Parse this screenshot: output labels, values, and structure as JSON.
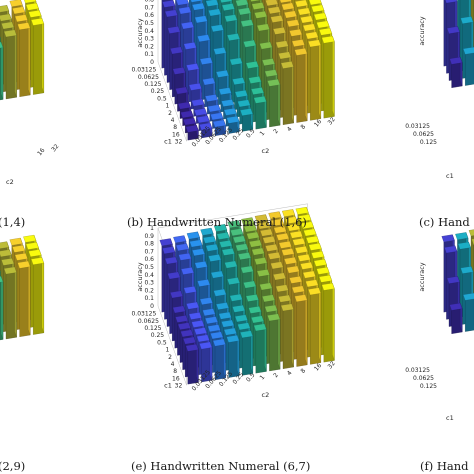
{
  "captions": {
    "a": "(1,4)",
    "b": "(b) Handwritten Numeral (1,6)",
    "c": "(c) Hand",
    "d": "(2,9)",
    "e": "(e) Handwritten Numeral (6,7)",
    "f": "(f) Hand"
  },
  "axis_labels": {
    "accuracy": "accuracy",
    "c1": "c1",
    "c2": "c2"
  },
  "param_ticks": [
    "0.03125",
    "0.0625",
    "0.125",
    "0.25",
    "0.5",
    "1",
    "2",
    "4",
    "8",
    "16",
    "32"
  ],
  "z_ticks": [
    "0",
    "0.1",
    "0.2",
    "0.3",
    "0.4",
    "0.5",
    "0.6",
    "0.7",
    "0.8",
    "0.9",
    "1"
  ],
  "colormap": [
    "#3e26a8",
    "#4a56f4",
    "#2991ee",
    "#1baec6",
    "#2fc194",
    "#8dbf42",
    "#eaba30",
    "#fbd72b",
    "#f9fb0e"
  ],
  "chart_data": [
    {
      "type": "bar3d",
      "title": "(b) Handwritten Numeral (1,6)",
      "xlabel": "c1",
      "ylabel": "c2",
      "zlabel": "accuracy",
      "zlim": [
        0,
        1
      ],
      "c1": [
        "0.03125",
        "0.0625",
        "0.125",
        "0.25",
        "0.5",
        "1",
        "2",
        "4",
        "8",
        "16",
        "32"
      ],
      "c2": [
        "0.03125",
        "0.0625",
        "0.125",
        "0.25",
        "0.5",
        "1",
        "2",
        "4",
        "8",
        "16",
        "32"
      ],
      "values": [
        [
          0.88,
          0.88,
          0.89,
          0.9,
          0.92,
          0.94,
          0.96,
          0.98,
          0.99,
          0.99,
          0.99
        ],
        [
          0.87,
          0.87,
          0.88,
          0.9,
          0.92,
          0.94,
          0.96,
          0.98,
          0.99,
          0.99,
          0.99
        ],
        [
          0.84,
          0.85,
          0.87,
          0.89,
          0.91,
          0.94,
          0.96,
          0.98,
          0.99,
          0.99,
          0.99
        ],
        [
          0.72,
          0.75,
          0.8,
          0.86,
          0.9,
          0.93,
          0.96,
          0.98,
          0.99,
          0.99,
          0.99
        ],
        [
          0.55,
          0.58,
          0.65,
          0.75,
          0.85,
          0.91,
          0.95,
          0.97,
          0.98,
          0.99,
          0.99
        ],
        [
          0.38,
          0.4,
          0.45,
          0.55,
          0.7,
          0.85,
          0.93,
          0.96,
          0.98,
          0.99,
          0.99
        ],
        [
          0.22,
          0.24,
          0.28,
          0.35,
          0.48,
          0.68,
          0.86,
          0.94,
          0.97,
          0.98,
          0.99
        ],
        [
          0.12,
          0.13,
          0.16,
          0.22,
          0.32,
          0.5,
          0.72,
          0.88,
          0.95,
          0.97,
          0.98
        ],
        [
          0.1,
          0.1,
          0.12,
          0.16,
          0.25,
          0.4,
          0.6,
          0.8,
          0.92,
          0.96,
          0.97
        ],
        [
          0.1,
          0.1,
          0.11,
          0.14,
          0.22,
          0.35,
          0.55,
          0.75,
          0.88,
          0.95,
          0.97
        ],
        [
          0.1,
          0.1,
          0.11,
          0.13,
          0.2,
          0.33,
          0.52,
          0.72,
          0.86,
          0.94,
          0.96
        ]
      ]
    },
    {
      "type": "bar3d",
      "title": "(e) Handwritten Numeral (6,7)",
      "xlabel": "c1",
      "ylabel": "c2",
      "zlabel": "accuracy",
      "zlim": [
        0,
        1
      ],
      "c1": [
        "0.03125",
        "0.0625",
        "0.125",
        "0.25",
        "0.5",
        "1",
        "2",
        "4",
        "8",
        "16",
        "32"
      ],
      "c2": [
        "0.03125",
        "0.0625",
        "0.125",
        "0.25",
        "0.5",
        "1",
        "2",
        "4",
        "8",
        "16",
        "32"
      ],
      "values": [
        [
          0.85,
          0.86,
          0.88,
          0.9,
          0.92,
          0.94,
          0.95,
          0.96,
          0.97,
          0.97,
          0.97
        ],
        [
          0.84,
          0.85,
          0.87,
          0.89,
          0.91,
          0.93,
          0.95,
          0.96,
          0.97,
          0.97,
          0.97
        ],
        [
          0.8,
          0.82,
          0.85,
          0.88,
          0.9,
          0.93,
          0.95,
          0.96,
          0.97,
          0.97,
          0.97
        ],
        [
          0.7,
          0.73,
          0.78,
          0.84,
          0.89,
          0.92,
          0.94,
          0.96,
          0.97,
          0.97,
          0.97
        ],
        [
          0.55,
          0.58,
          0.64,
          0.72,
          0.82,
          0.9,
          0.93,
          0.95,
          0.96,
          0.97,
          0.97
        ],
        [
          0.45,
          0.47,
          0.5,
          0.58,
          0.7,
          0.82,
          0.9,
          0.94,
          0.96,
          0.96,
          0.97
        ],
        [
          0.42,
          0.43,
          0.45,
          0.5,
          0.58,
          0.72,
          0.84,
          0.91,
          0.94,
          0.95,
          0.96
        ],
        [
          0.42,
          0.42,
          0.44,
          0.47,
          0.53,
          0.64,
          0.76,
          0.86,
          0.92,
          0.94,
          0.95
        ],
        [
          0.42,
          0.42,
          0.43,
          0.46,
          0.5,
          0.58,
          0.7,
          0.8,
          0.88,
          0.92,
          0.94
        ],
        [
          0.42,
          0.42,
          0.43,
          0.45,
          0.49,
          0.55,
          0.66,
          0.76,
          0.85,
          0.9,
          0.93
        ],
        [
          0.42,
          0.42,
          0.43,
          0.45,
          0.48,
          0.54,
          0.64,
          0.74,
          0.83,
          0.89,
          0.92
        ]
      ]
    },
    {
      "type": "bar3d",
      "title": "(1,4)",
      "xlabel": "",
      "ylabel": "c2",
      "zlabel": "",
      "zlim": [
        0,
        1
      ],
      "values": [
        [
          0.55,
          0.6,
          0.7,
          0.8,
          0.9,
          0.95,
          0.97
        ],
        [
          0.5,
          0.55,
          0.65,
          0.78,
          0.88,
          0.95,
          0.97
        ],
        [
          0.45,
          0.5,
          0.6,
          0.75,
          0.87,
          0.94,
          0.97
        ],
        [
          0.42,
          0.47,
          0.57,
          0.72,
          0.86,
          0.93,
          0.96
        ]
      ]
    },
    {
      "type": "bar3d",
      "title": "(2,9)",
      "xlabel": "",
      "ylabel": "",
      "zlabel": "",
      "zlim": [
        0,
        1
      ],
      "values": [
        [
          0.7,
          0.75,
          0.82,
          0.9,
          0.95,
          0.97,
          0.98
        ],
        [
          0.6,
          0.68,
          0.78,
          0.88,
          0.94,
          0.97,
          0.98
        ],
        [
          0.5,
          0.58,
          0.7,
          0.84,
          0.92,
          0.96,
          0.98
        ],
        [
          0.45,
          0.52,
          0.64,
          0.8,
          0.9,
          0.95,
          0.97
        ]
      ]
    },
    {
      "type": "bar3d",
      "title": "(c) Hand",
      "xlabel": "",
      "ylabel": "",
      "zlabel": "accuracy",
      "zlim": [
        0,
        1
      ],
      "values": [
        [
          0.95,
          0.95,
          0.96,
          0.96
        ],
        [
          0.9,
          0.92,
          0.93,
          0.94
        ],
        [
          0.6,
          0.7,
          0.8,
          0.88
        ],
        [
          0.3,
          0.4,
          0.55,
          0.7
        ]
      ]
    },
    {
      "type": "bar3d",
      "title": "(f) Hand",
      "xlabel": "",
      "ylabel": "",
      "zlabel": "accuracy",
      "zlim": [
        0,
        1
      ],
      "values": [
        [
          0.9,
          0.9,
          0.92,
          0.93
        ],
        [
          0.85,
          0.87,
          0.9,
          0.92
        ],
        [
          0.55,
          0.65,
          0.78,
          0.86
        ],
        [
          0.3,
          0.4,
          0.55,
          0.7
        ]
      ]
    }
  ]
}
